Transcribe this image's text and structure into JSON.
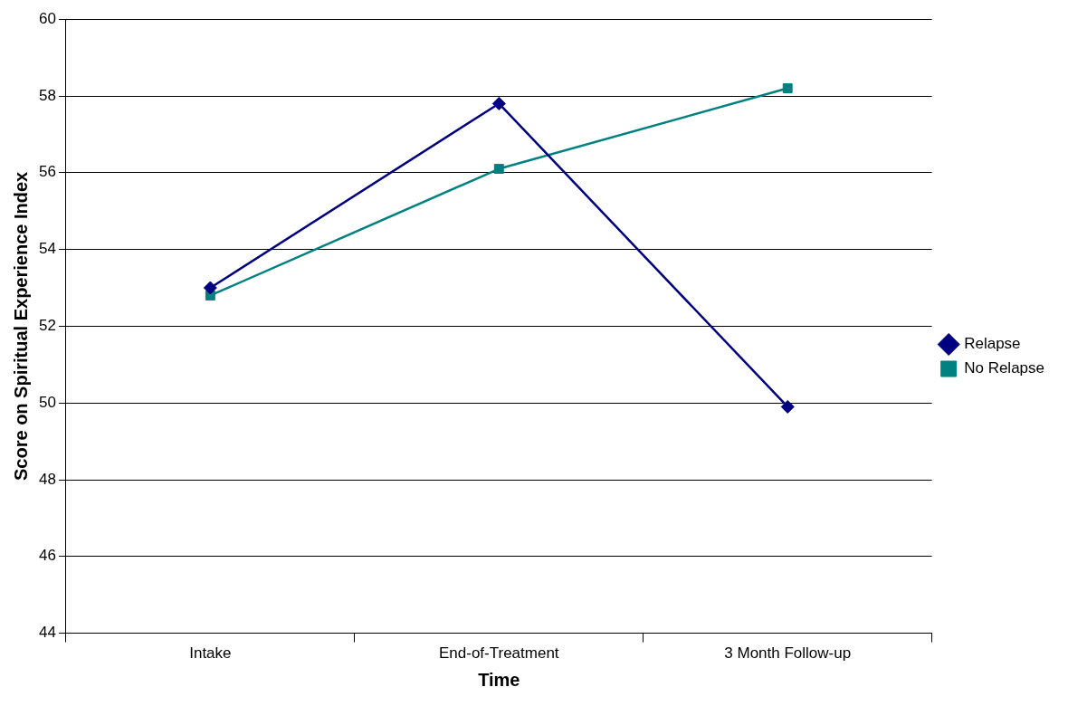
{
  "chart_data": {
    "type": "line",
    "xlabel": "Time",
    "ylabel": "Score on Spiritual Experience Index",
    "categories": [
      "Intake",
      "End-of-Treatment",
      "3 Month Follow-up"
    ],
    "series": [
      {
        "name": "Relapse",
        "color": "#000080",
        "marker": "diamond",
        "values": [
          53.0,
          57.8,
          49.9
        ]
      },
      {
        "name": "No Relapse",
        "color": "#008080",
        "marker": "square",
        "values": [
          52.8,
          56.1,
          58.2
        ]
      }
    ],
    "ylim": [
      44,
      60
    ],
    "yticks": [
      44,
      46,
      48,
      50,
      52,
      54,
      56,
      58,
      60
    ],
    "grid": "y",
    "legend": "right",
    "line_style": "solid"
  }
}
